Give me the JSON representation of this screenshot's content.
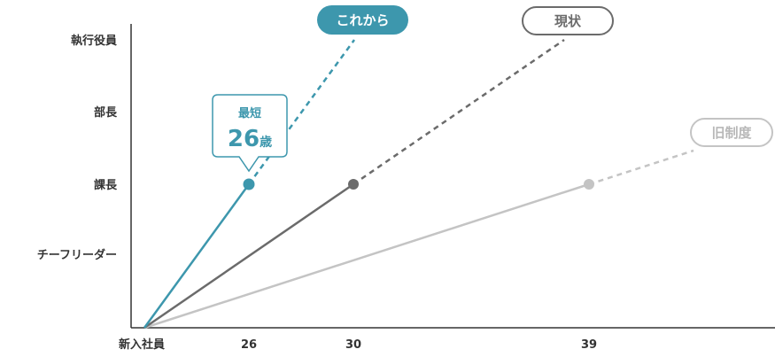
{
  "chart_data": {
    "type": "line",
    "y_categories": [
      "新入社員",
      "チーフリーダー",
      "課長",
      "部長",
      "執行役員"
    ],
    "y_tick_labels": [
      "チーフリーダー",
      "課長",
      "部長",
      "執行役員"
    ],
    "x_ticks": [
      "新入社員",
      "26",
      "30",
      "39"
    ],
    "series": [
      {
        "name": "これから",
        "color": "#3d97ad",
        "points": [
          {
            "x": "新入社員",
            "y": "新入社員"
          },
          {
            "x": 26,
            "y": "課長"
          }
        ],
        "projected_to": "執行役員",
        "label_style": "filled"
      },
      {
        "name": "現状",
        "color": "#6b6b6b",
        "points": [
          {
            "x": "新入社員",
            "y": "新入社員"
          },
          {
            "x": 30,
            "y": "課長"
          }
        ],
        "projected_to": "執行役員",
        "label_style": "outline"
      },
      {
        "name": "旧制度",
        "color": "#c4c4c4",
        "points": [
          {
            "x": "新入社員",
            "y": "新入社員"
          },
          {
            "x": 39,
            "y": "課長"
          }
        ],
        "projected_to": "部長",
        "label_style": "outline"
      }
    ],
    "callout": {
      "line1": "最短",
      "value": "26",
      "unit": "歳"
    },
    "grid": false,
    "legend": "inline labels at line ends"
  }
}
